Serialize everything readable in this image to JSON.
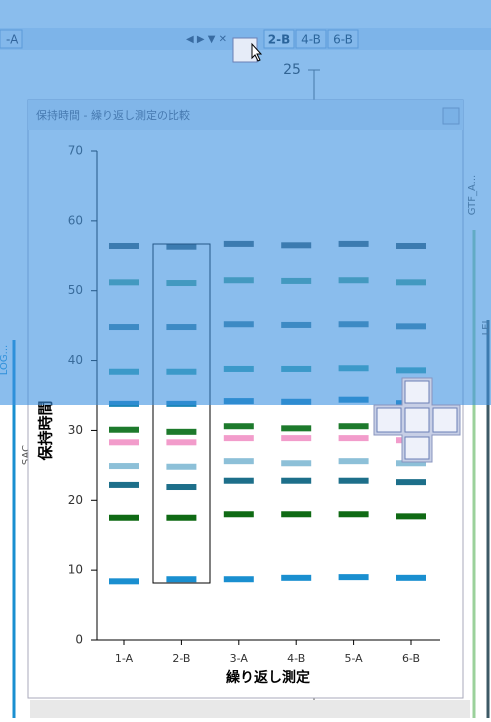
{
  "tabs": {
    "left": "-A",
    "right": [
      "2-B",
      "4-B",
      "6-B"
    ]
  },
  "background": {
    "texts": [
      "25",
      "GTF_A...",
      "LEI",
      "SAC",
      "LOG..."
    ]
  },
  "window": {
    "title": "保持時間 - 繰り返し測定の比較"
  },
  "chart_data": {
    "type": "dash",
    "y_label": "保持時間",
    "x_label": "繰り返し測定",
    "categories": [
      "1-A",
      "2-B",
      "3-A",
      "4-B",
      "5-A",
      "6-B"
    ],
    "ylim": [
      0,
      70
    ],
    "yticks": [
      0,
      10,
      20,
      30,
      40,
      50,
      60,
      70
    ],
    "series": [
      {
        "color": "#3d5a66",
        "values": [
          56.4,
          56.3,
          56.7,
          56.5,
          56.7,
          56.4
        ]
      },
      {
        "color": "#4ea58e",
        "values": [
          51.2,
          51.1,
          51.5,
          51.4,
          51.5,
          51.2
        ]
      },
      {
        "color": "#3f7f9a",
        "values": [
          44.8,
          44.8,
          45.2,
          45.1,
          45.2,
          44.9
        ]
      },
      {
        "color": "#3aa6a6",
        "values": [
          38.4,
          38.4,
          38.8,
          38.8,
          38.9,
          38.6
        ]
      },
      {
        "color": "#1b86b8",
        "values": [
          33.8,
          33.8,
          34.2,
          34.1,
          34.4,
          33.9
        ]
      },
      {
        "color": "#1d7a2c",
        "values": [
          30.1,
          29.8,
          30.6,
          30.3,
          30.6,
          30.3
        ]
      },
      {
        "color": "#f29ccb",
        "values": [
          28.3,
          28.3,
          28.9,
          28.9,
          28.9,
          28.6
        ]
      },
      {
        "color": "#8dc0d8",
        "values": [
          24.9,
          24.8,
          25.6,
          25.3,
          25.6,
          25.3
        ]
      },
      {
        "color": "#1d6f8a",
        "values": [
          22.2,
          21.9,
          22.8,
          22.8,
          22.8,
          22.6
        ]
      },
      {
        "color": "#0f6a14",
        "values": [
          17.5,
          17.5,
          18.0,
          18.0,
          18.0,
          17.7
        ]
      },
      {
        "color": "#1a8fd0",
        "values": [
          8.4,
          8.7,
          8.7,
          8.9,
          9.0,
          8.9
        ]
      }
    ]
  }
}
